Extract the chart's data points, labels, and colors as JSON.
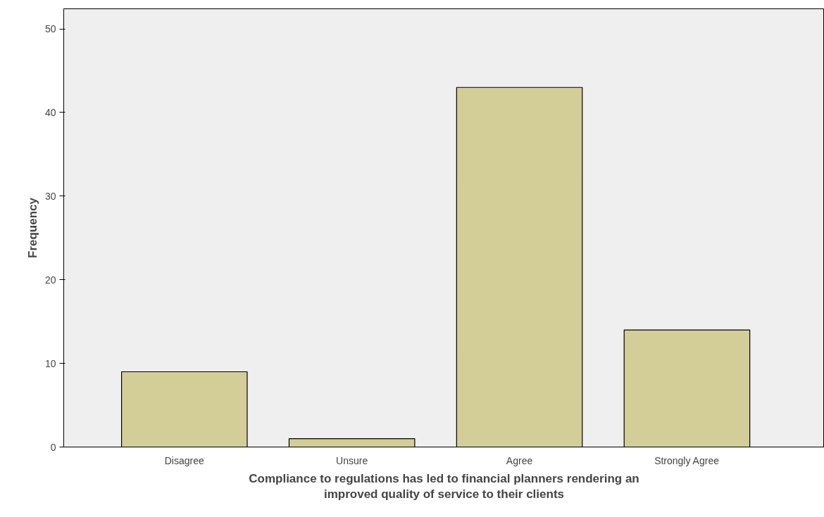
{
  "chart_data": {
    "type": "bar",
    "xlabel": "Compliance to regulations has led to financial planners rendering an\nimproved quality of service to their clients",
    "ylabel": "Frequency",
    "categories": [
      "Disagree",
      "Unsure",
      "Agree",
      "Strongly Agree"
    ],
    "values": [
      9,
      1,
      43,
      14
    ],
    "color": "#d3cd98",
    "ylim": [
      0,
      52.4
    ],
    "yticks": [
      0,
      10,
      20,
      30,
      40,
      50
    ],
    "grid": false
  }
}
